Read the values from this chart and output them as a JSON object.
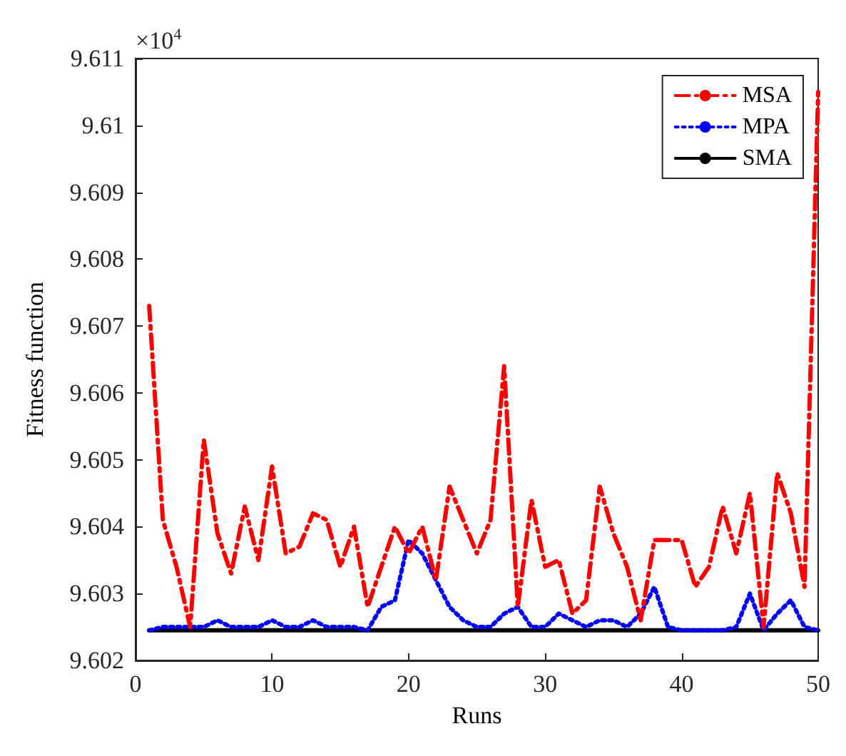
{
  "chart_data": {
    "type": "line",
    "xlabel": "Runs",
    "ylabel": "Fitness function",
    "annotations": [
      "×10$^{4}$"
    ],
    "x": [
      1,
      2,
      3,
      4,
      5,
      6,
      7,
      8,
      9,
      10,
      11,
      12,
      13,
      14,
      15,
      16,
      17,
      18,
      19,
      20,
      21,
      22,
      23,
      24,
      25,
      26,
      27,
      28,
      29,
      30,
      31,
      32,
      33,
      34,
      35,
      36,
      37,
      38,
      39,
      40,
      41,
      42,
      43,
      44,
      45,
      46,
      47,
      48,
      49,
      50
    ],
    "series": [
      {
        "name": "MSA",
        "color": "#ff0000",
        "line_style": "dashed",
        "values": [
          9.6073,
          9.6041,
          9.6034,
          9.6025,
          9.6053,
          9.6039,
          9.6033,
          9.6043,
          9.6035,
          9.6049,
          9.6036,
          9.6037,
          9.6042,
          9.6041,
          9.6034,
          9.604,
          9.6028,
          9.6034,
          9.604,
          9.6036,
          9.604,
          9.6032,
          9.6046,
          9.6041,
          9.6036,
          9.6041,
          9.6064,
          9.6028,
          9.6044,
          9.6034,
          9.6035,
          9.6027,
          9.6029,
          9.6046,
          9.6039,
          9.6034,
          9.6026,
          9.6038,
          9.6038,
          9.6038,
          9.6031,
          9.6034,
          9.6043,
          9.6036,
          9.6045,
          9.6025,
          9.6048,
          9.6042,
          9.6031,
          9.6105
        ]
      },
      {
        "name": "MPA",
        "color": "#0000ff",
        "line_style": "dotted",
        "values": [
          9.60245,
          9.6025,
          9.6025,
          9.6025,
          9.6025,
          9.6026,
          9.6025,
          9.6025,
          9.6025,
          9.6026,
          9.6025,
          9.6025,
          9.6026,
          9.6025,
          9.6025,
          9.6025,
          9.60245,
          9.6028,
          9.6029,
          9.6038,
          9.6036,
          9.6032,
          9.6028,
          9.6026,
          9.6025,
          9.6025,
          9.6027,
          9.6028,
          9.6025,
          9.6025,
          9.6027,
          9.6026,
          9.6025,
          9.6026,
          9.6026,
          9.6025,
          9.6027,
          9.6031,
          9.6025,
          9.60245,
          9.60245,
          9.60245,
          9.60245,
          9.6025,
          9.603,
          9.60245,
          9.6027,
          9.6029,
          9.6025,
          9.60245
        ]
      },
      {
        "name": "SMA",
        "color": "#000000",
        "line_style": "solid",
        "values": [
          9.60245,
          9.60245,
          9.60245,
          9.60245,
          9.60245,
          9.60245,
          9.60245,
          9.60245,
          9.60245,
          9.60245,
          9.60245,
          9.60245,
          9.60245,
          9.60245,
          9.60245,
          9.60245,
          9.60245,
          9.60245,
          9.60245,
          9.60245,
          9.60245,
          9.60245,
          9.60245,
          9.60245,
          9.60245,
          9.60245,
          9.60245,
          9.60245,
          9.60245,
          9.60245,
          9.60245,
          9.60245,
          9.60245,
          9.60245,
          9.60245,
          9.60245,
          9.60245,
          9.60245,
          9.60245,
          9.60245,
          9.60245,
          9.60245,
          9.60245,
          9.60245,
          9.60245,
          9.60245,
          9.60245,
          9.60245,
          9.60245,
          9.60245
        ]
      }
    ],
    "xlim": [
      0,
      50
    ],
    "xticks": [
      0,
      10,
      20,
      30,
      40,
      50
    ],
    "ylim": [
      9.602,
      9.611
    ],
    "yticks": [
      9.602,
      9.603,
      9.604,
      9.605,
      9.606,
      9.607,
      9.608,
      9.609,
      9.61,
      9.611
    ],
    "legend": "top right",
    "grid": false,
    "marker": "none"
  }
}
